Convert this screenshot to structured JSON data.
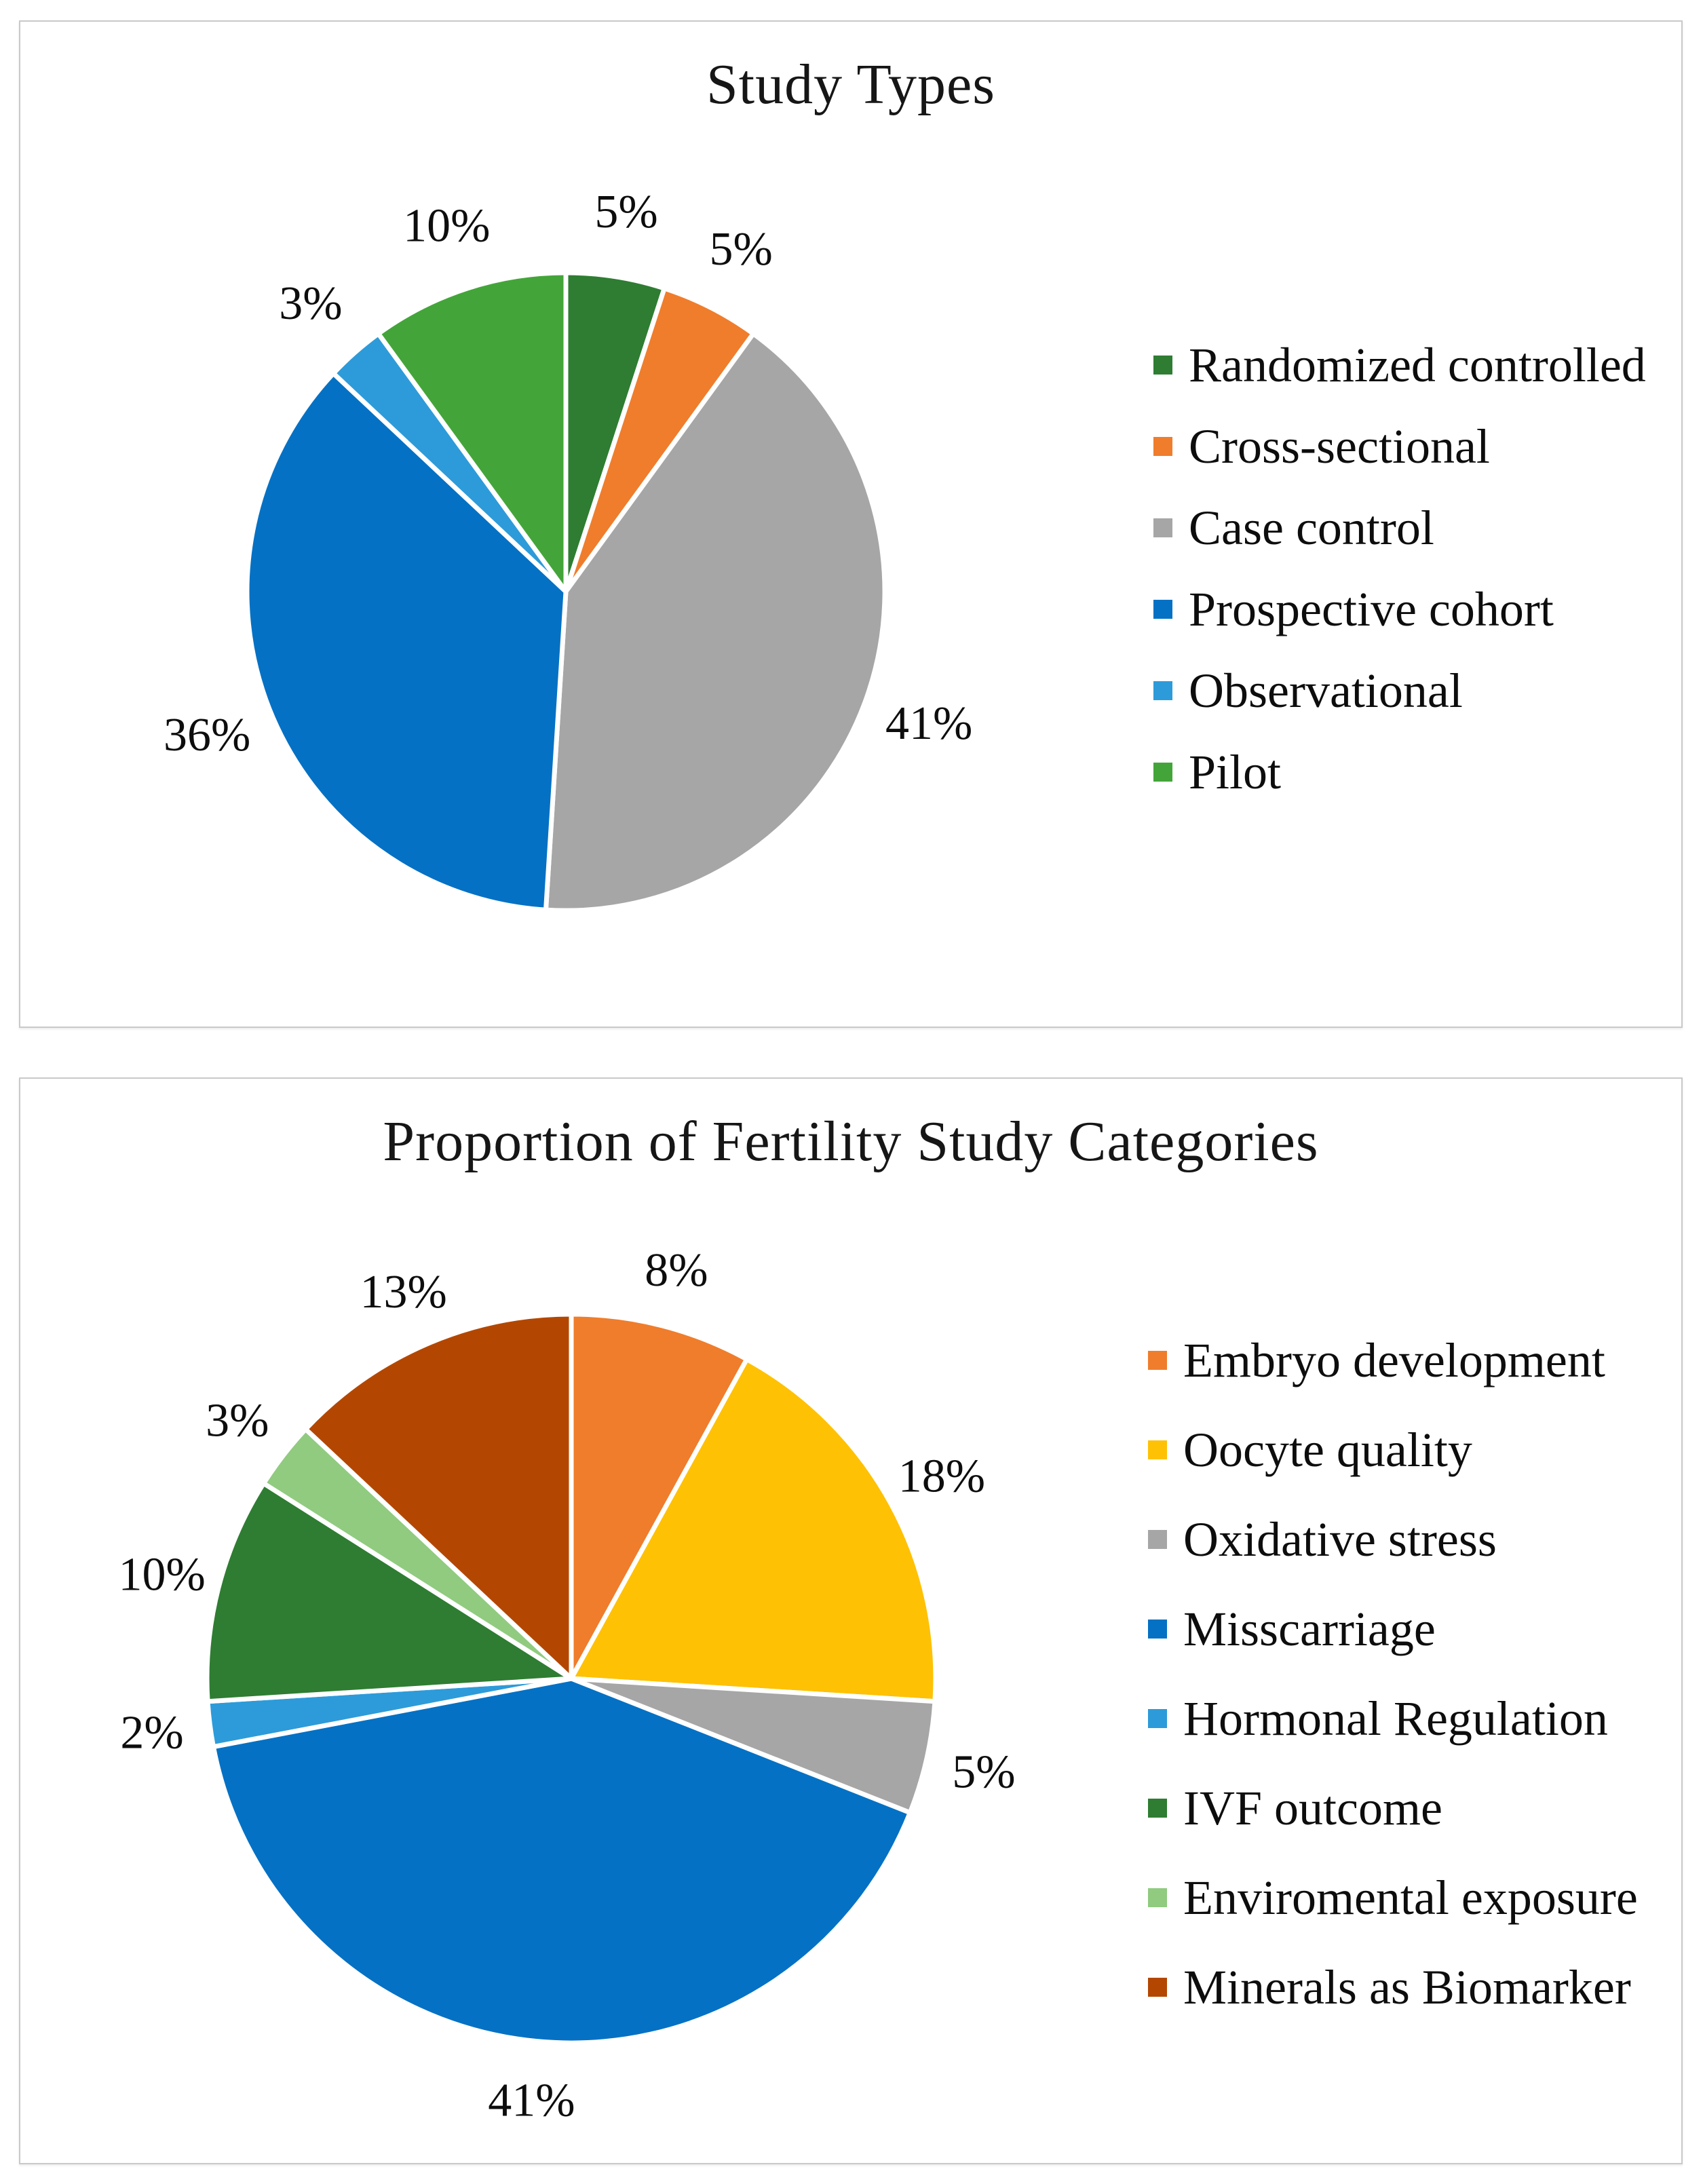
{
  "figure": {
    "background": "#ffffff",
    "panel_border_color": "#c9c9c9",
    "text_color": "#0d0d0d"
  },
  "chart_data": [
    {
      "type": "pie",
      "title": "Study Types",
      "start_angle_deg": 0,
      "direction": "clockwise",
      "legend_position": "right",
      "data_labels": "percent-outside",
      "slices": [
        {
          "label": "Randomized controlled",
          "value": 5,
          "data_label": "5%",
          "color": "#2e7d32"
        },
        {
          "label": "Cross-sectional",
          "value": 5,
          "data_label": "5%",
          "color": "#ef7d2c"
        },
        {
          "label": "Case control",
          "value": 41,
          "data_label": "41%",
          "color": "#a6a6a6"
        },
        {
          "label": "Prospective cohort",
          "value": 36,
          "data_label": "36%",
          "color": "#0471c4"
        },
        {
          "label": "Observational",
          "value": 3,
          "data_label": "3%",
          "color": "#2d9bd9"
        },
        {
          "label": "Pilot",
          "value": 10,
          "data_label": "10%",
          "color": "#43a539"
        }
      ]
    },
    {
      "type": "pie",
      "title": "Proportion of Fertility Study Categories",
      "start_angle_deg": 0,
      "direction": "clockwise",
      "legend_position": "right",
      "data_labels": "percent-outside",
      "slices": [
        {
          "label": "Embryo development",
          "value": 8,
          "data_label": "8%",
          "color": "#ef7d2c"
        },
        {
          "label": "Oocyte quality",
          "value": 18,
          "data_label": "18%",
          "color": "#ffc103"
        },
        {
          "label": "Oxidative stress",
          "value": 5,
          "data_label": "5%",
          "color": "#a6a6a6"
        },
        {
          "label": "Misscarriage",
          "value": 41,
          "data_label": "41%",
          "color": "#0471c4"
        },
        {
          "label": "Hormonal Regulation",
          "value": 2,
          "data_label": "2%",
          "color": "#2d9bd9"
        },
        {
          "label": "IVF outcome",
          "value": 10,
          "data_label": "10%",
          "color": "#2e7d32"
        },
        {
          "label": "Enviromental exposure",
          "value": 3,
          "data_label": "3%",
          "color": "#90cb80"
        },
        {
          "label": "Minerals as Biomarker",
          "value": 13,
          "data_label": "13%",
          "color": "#b34702"
        }
      ]
    }
  ]
}
